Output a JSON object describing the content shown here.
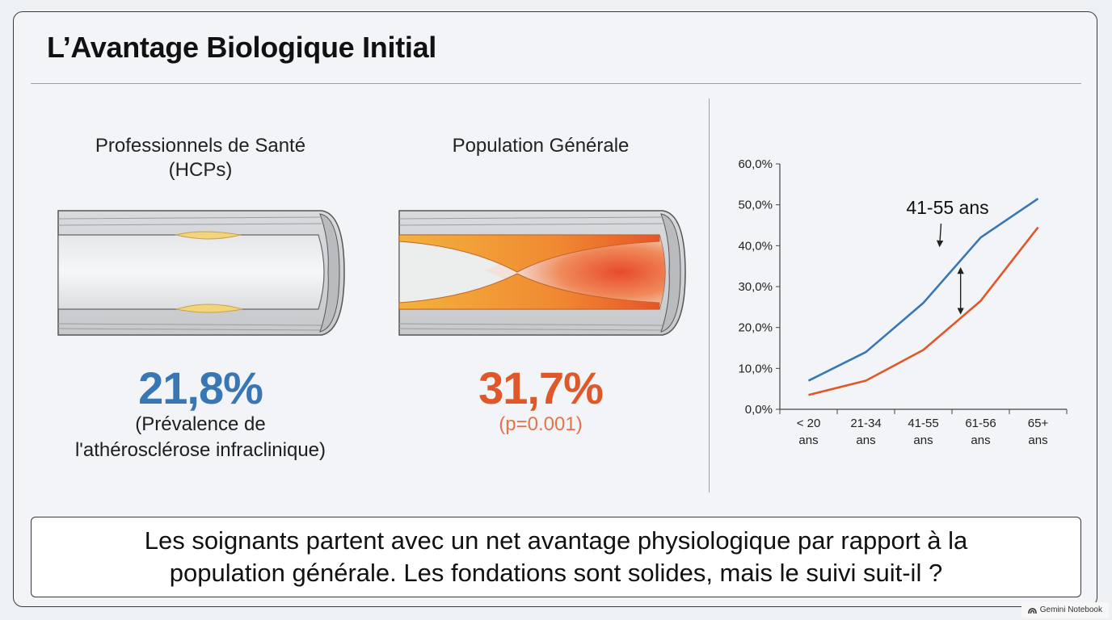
{
  "title": "L’Avantage Biologique Initial",
  "colors": {
    "hcp": "#3876b4",
    "general": "#e0582a",
    "p_value": "#e3744d"
  },
  "hcp": {
    "heading_line1": "Professionnels de Santé",
    "heading_line2": "(HCPs)",
    "value": "21,8%",
    "caption_line1": "(Prévalence de",
    "caption_line2": "l'athérosclérose infraclinique)"
  },
  "general": {
    "heading": "Population Générale",
    "value": "31,7%",
    "p_value": "(p=0.001)"
  },
  "footer": {
    "line1": "Les soignants partent avec un net avantage physiologique par rapport à la",
    "line2": "population générale. Les fondations sont solides, mais le suivi suit-il ?"
  },
  "badge": {
    "icon": "gemini-sparkle-icon",
    "text": "Gemini Notebook"
  },
  "chart_data": {
    "type": "line",
    "categories": [
      [
        "< 20",
        "ans"
      ],
      [
        "21-34",
        "ans"
      ],
      [
        "41-55",
        "ans"
      ],
      [
        "61-56",
        "ans"
      ],
      [
        "65+",
        "ans"
      ]
    ],
    "series": [
      {
        "color": "#3876b4",
        "values": [
          7.0,
          14.0,
          26.0,
          42.0,
          51.5
        ]
      },
      {
        "color": "#e0582a",
        "values": [
          3.5,
          7.0,
          14.5,
          26.5,
          44.5
        ]
      }
    ],
    "ylim": [
      0,
      60
    ],
    "yticks": [
      "0,0%",
      "10,0%",
      "20,0%",
      "30,0%",
      "40,0%",
      "50,0%",
      "60,0%"
    ],
    "annotation": {
      "text": "41-55 ans",
      "at_category": 2
    },
    "grid": false,
    "legend": "none"
  }
}
